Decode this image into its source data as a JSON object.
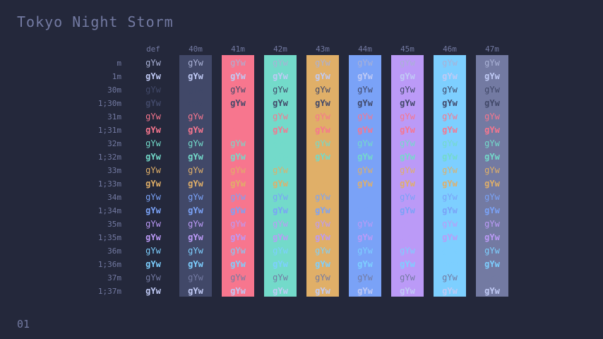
{
  "title": "Tokyo Night Storm",
  "page_number": "01",
  "sample_text": "gYw",
  "column_headers": [
    "def",
    "40m",
    "41m",
    "42m",
    "43m",
    "44m",
    "45m",
    "46m",
    "47m"
  ],
  "row_labels": [
    "m",
    "1m",
    "30m",
    "1;30m",
    "31m",
    "1;31m",
    "32m",
    "1;32m",
    "33m",
    "1;33m",
    "34m",
    "1;34m",
    "35m",
    "1;35m",
    "36m",
    "1;36m",
    "37m",
    "1;37m"
  ],
  "colors": {
    "window_background": "#24283b",
    "default_foreground": "#a9b1d6",
    "bright_foreground": "#c0caf5",
    "black": "#414868",
    "red": "#f7768e",
    "green": "#73daca",
    "yellow": "#e0af68",
    "blue": "#7aa2f7",
    "magenta": "#bb9af7",
    "cyan": "#7dcfff",
    "white": "#737aa2"
  },
  "background_colors": [
    "#24283b",
    "#414868",
    "#f7768e",
    "#73daca",
    "#e0af68",
    "#7aa2f7",
    "#bb9af7",
    "#7dcfff",
    "#737aa2"
  ],
  "foreground_colors": [
    "#a9b1d6",
    "#c0caf5",
    "#414868",
    "#414868",
    "#f7768e",
    "#f7768e",
    "#73daca",
    "#73daca",
    "#e0af68",
    "#e0af68",
    "#7aa2f7",
    "#7aa2f7",
    "#bb9af7",
    "#bb9af7",
    "#7dcfff",
    "#7dcfff",
    "#737aa2",
    "#c0caf5"
  ],
  "bold_rows": [
    false,
    true,
    false,
    true,
    false,
    true,
    false,
    true,
    false,
    true,
    false,
    true,
    false,
    true,
    false,
    true,
    false,
    true
  ]
}
